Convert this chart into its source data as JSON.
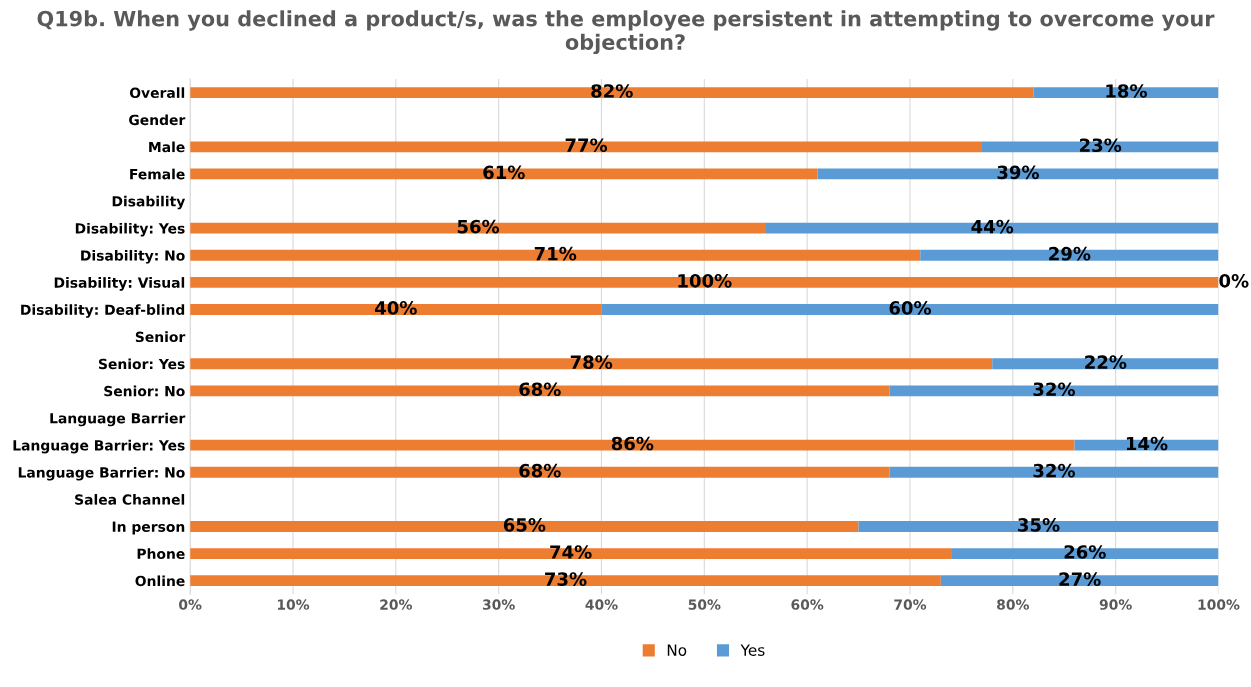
{
  "chart_data": {
    "type": "bar",
    "orientation": "horizontal",
    "stacked": true,
    "title": "Q19b. When you declined a product/s, was the employee persistent in attempting to overcome your objection?",
    "categories": [
      "Overall",
      "Gender",
      "Male",
      "Female",
      "Disability",
      "Disability: Yes",
      "Disability: No",
      "Disability: Visual",
      "Disability: Deaf-blind",
      "Senior",
      "Senior: Yes",
      "Senior: No",
      "Language Barrier",
      "Language Barrier: Yes",
      "Language Barrier: No",
      "Salea Channel",
      "In person",
      "Phone",
      "Online"
    ],
    "series": [
      {
        "name": "No",
        "color": "#ed7d31",
        "values": [
          82,
          null,
          77,
          61,
          null,
          56,
          71,
          100,
          40,
          null,
          78,
          68,
          null,
          86,
          68,
          null,
          65,
          74,
          73
        ],
        "value_labels": [
          "82%",
          null,
          "77%",
          "61%",
          null,
          "56%",
          "71%",
          "100%",
          "40%",
          null,
          "78%",
          "68%",
          null,
          "86%",
          "68%",
          null,
          "65%",
          "74%",
          "73%"
        ]
      },
      {
        "name": "Yes",
        "color": "#5b9bd5",
        "values": [
          18,
          null,
          23,
          39,
          null,
          44,
          29,
          0,
          60,
          null,
          22,
          32,
          null,
          14,
          32,
          null,
          35,
          26,
          27
        ],
        "value_labels": [
          "18%",
          null,
          "23%",
          "39%",
          null,
          "44%",
          "29%",
          "0%",
          "60%",
          null,
          "22%",
          "32%",
          null,
          "14%",
          "32%",
          null,
          "35%",
          "26%",
          "27%"
        ]
      }
    ],
    "xlim": [
      0,
      100
    ],
    "xticks": [
      {
        "value": 0,
        "label": "0%"
      },
      {
        "value": 10,
        "label": "10%"
      },
      {
        "value": 20,
        "label": "20%"
      },
      {
        "value": 30,
        "label": "30%"
      },
      {
        "value": 40,
        "label": "40%"
      },
      {
        "value": 50,
        "label": "50%"
      },
      {
        "value": 60,
        "label": "60%"
      },
      {
        "value": 70,
        "label": "70%"
      },
      {
        "value": 80,
        "label": "80%"
      },
      {
        "value": 90,
        "label": "90%"
      },
      {
        "value": 100,
        "label": "100%"
      }
    ],
    "grid": "x",
    "legend": "bottom"
  }
}
